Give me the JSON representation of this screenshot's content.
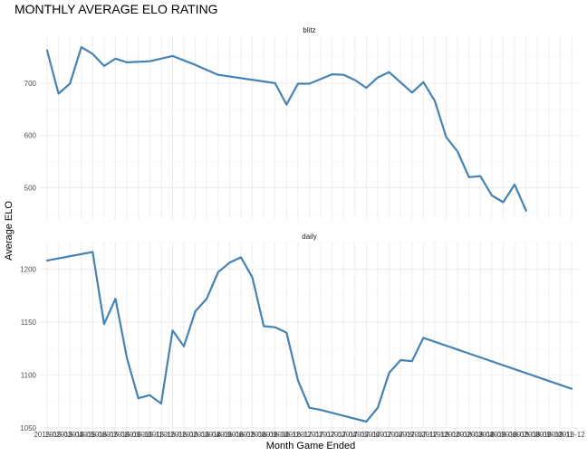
{
  "chart_data": {
    "type": "line",
    "title": "MONTHLY AVERAGE ELO RATING",
    "xlabel": "Month Game Ended",
    "ylabel": "Average ELO",
    "color": "#4682b4",
    "grid": true,
    "x_tick_labels": [
      "2015-02",
      "2015-03",
      "2015-04",
      "2015-05",
      "2015-06",
      "2015-07",
      "2015-08",
      "2015-09",
      "2015-10",
      "2015-11",
      "2015-12",
      "2016-01",
      "2016-02",
      "2016-03",
      "2016-04",
      "2016-05",
      "2016-06",
      "2016-07",
      "2016-08",
      "2016-09",
      "2016-10",
      "2016-11",
      "2016-12",
      "2017-01",
      "2017-02",
      "2017-03",
      "2017-04",
      "2017-05",
      "2017-06",
      "2017-07",
      "2017-08",
      "2017-09",
      "2017-10",
      "2017-11",
      "2017-12",
      "2018-01",
      "2018-02",
      "2018-03",
      "2018-04",
      "2018-05",
      "2018-06",
      "2018-07",
      "2018-08",
      "2018-09",
      "2018-10",
      "2018-11",
      "2018-12"
    ],
    "panels": [
      {
        "name": "blitz",
        "ylim": [
          440,
          790
        ],
        "yticks": [
          500,
          600,
          700
        ],
        "points": [
          {
            "x": "2015-02",
            "y": 763
          },
          {
            "x": "2015-03",
            "y": 680
          },
          {
            "x": "2015-04",
            "y": 699
          },
          {
            "x": "2015-05",
            "y": 769
          },
          {
            "x": "2015-06",
            "y": 756
          },
          {
            "x": "2015-07",
            "y": 733
          },
          {
            "x": "2015-08",
            "y": 747
          },
          {
            "x": "2015-09",
            "y": 740
          },
          {
            "x": "2015-11",
            "y": 742
          },
          {
            "x": "2016-01",
            "y": 752
          },
          {
            "x": "2016-03",
            "y": 735
          },
          {
            "x": "2016-05",
            "y": 716
          },
          {
            "x": "2016-10",
            "y": 700
          },
          {
            "x": "2016-11",
            "y": 659
          },
          {
            "x": "2016-12",
            "y": 699
          },
          {
            "x": "2017-01",
            "y": 699
          },
          {
            "x": "2017-03",
            "y": 717
          },
          {
            "x": "2017-04",
            "y": 716
          },
          {
            "x": "2017-05",
            "y": 706
          },
          {
            "x": "2017-06",
            "y": 691
          },
          {
            "x": "2017-07",
            "y": 711
          },
          {
            "x": "2017-08",
            "y": 721
          },
          {
            "x": "2017-10",
            "y": 682
          },
          {
            "x": "2017-11",
            "y": 702
          },
          {
            "x": "2017-12",
            "y": 666
          },
          {
            "x": "2018-01",
            "y": 597
          },
          {
            "x": "2018-02",
            "y": 569
          },
          {
            "x": "2018-03",
            "y": 520
          },
          {
            "x": "2018-04",
            "y": 522
          },
          {
            "x": "2018-05",
            "y": 485
          },
          {
            "x": "2018-06",
            "y": 472
          },
          {
            "x": "2018-07",
            "y": 506
          },
          {
            "x": "2018-08",
            "y": 456
          }
        ]
      },
      {
        "name": "daily",
        "ylim": [
          1050,
          1225
        ],
        "yticks": [
          1050,
          1100,
          1150,
          1200
        ],
        "points": [
          {
            "x": "2015-02",
            "y": 1208
          },
          {
            "x": "2015-06",
            "y": 1216
          },
          {
            "x": "2015-07",
            "y": 1148
          },
          {
            "x": "2015-08",
            "y": 1172
          },
          {
            "x": "2015-09",
            "y": 1116
          },
          {
            "x": "2015-10",
            "y": 1078
          },
          {
            "x": "2015-11",
            "y": 1081
          },
          {
            "x": "2015-12",
            "y": 1073
          },
          {
            "x": "2016-01",
            "y": 1142
          },
          {
            "x": "2016-02",
            "y": 1127
          },
          {
            "x": "2016-03",
            "y": 1160
          },
          {
            "x": "2016-04",
            "y": 1172
          },
          {
            "x": "2016-05",
            "y": 1197
          },
          {
            "x": "2016-06",
            "y": 1206
          },
          {
            "x": "2016-07",
            "y": 1211
          },
          {
            "x": "2016-08",
            "y": 1192
          },
          {
            "x": "2016-09",
            "y": 1146
          },
          {
            "x": "2016-10",
            "y": 1145
          },
          {
            "x": "2016-11",
            "y": 1140
          },
          {
            "x": "2016-12",
            "y": 1095
          },
          {
            "x": "2017-01",
            "y": 1069
          },
          {
            "x": "2017-02",
            "y": 1067
          },
          {
            "x": "2017-06",
            "y": 1056
          },
          {
            "x": "2017-07",
            "y": 1069
          },
          {
            "x": "2017-08",
            "y": 1102
          },
          {
            "x": "2017-09",
            "y": 1114
          },
          {
            "x": "2017-10",
            "y": 1113
          },
          {
            "x": "2017-11",
            "y": 1135
          },
          {
            "x": "2018-12",
            "y": 1087
          }
        ]
      }
    ]
  }
}
